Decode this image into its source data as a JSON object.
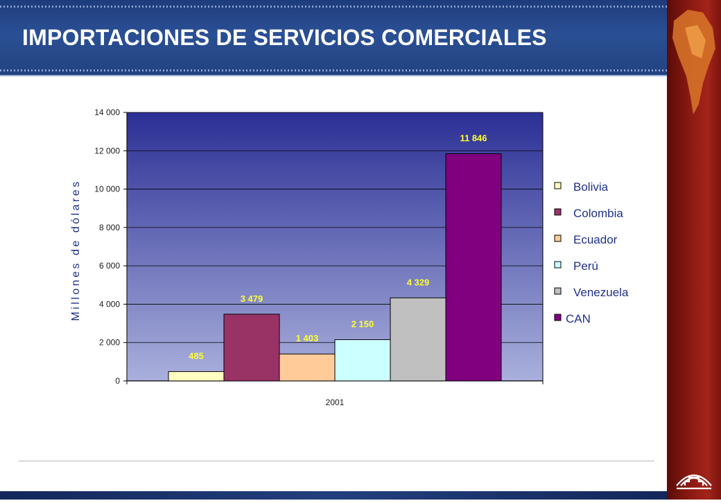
{
  "page": {
    "title": "IMPORTACIONES DE SERVICIOS COMERCIALES"
  },
  "chart_data": {
    "type": "bar",
    "title": "",
    "xlabel": "",
    "ylabel": "Millones de dólares",
    "categories": [
      "2001"
    ],
    "series": [
      {
        "name": "Bolivia",
        "values": [
          485
        ],
        "label": "485",
        "color": "#ffffc0"
      },
      {
        "name": "Colombia",
        "values": [
          3479
        ],
        "label": "3 479",
        "color": "#993366"
      },
      {
        "name": "Ecuador",
        "values": [
          1403
        ],
        "label": "1 403",
        "color": "#ffcc99"
      },
      {
        "name": "Perú",
        "values": [
          2150
        ],
        "label": "2 150",
        "color": "#ccffff"
      },
      {
        "name": "Venezuela",
        "values": [
          4329
        ],
        "label": "4 329",
        "color": "#c0c0c0"
      },
      {
        "name": "CAN",
        "values": [
          11846
        ],
        "label": "11 846",
        "color": "#800080"
      }
    ],
    "ylim": [
      0,
      14000
    ],
    "yticks": [
      {
        "value": 0,
        "label": "0"
      },
      {
        "value": 2000,
        "label": "2 000"
      },
      {
        "value": 4000,
        "label": "4 000"
      },
      {
        "value": 6000,
        "label": "6 000"
      },
      {
        "value": 8000,
        "label": "8 000"
      },
      {
        "value": 10000,
        "label": "10 000"
      },
      {
        "value": 12000,
        "label": "12 000"
      },
      {
        "value": 14000,
        "label": "14 000"
      }
    ],
    "grid": true,
    "legend_position": "right",
    "plot_background": [
      "#2b2f95",
      "#aab0dc"
    ]
  }
}
